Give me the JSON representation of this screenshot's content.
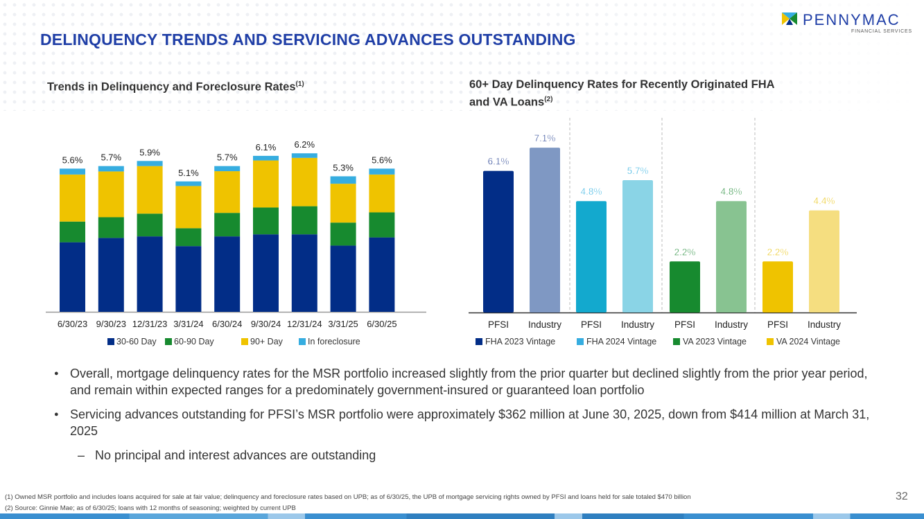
{
  "header": {
    "title": "DELINQUENCY TRENDS AND SERVICING ADVANCES OUTSTANDING",
    "logo_text": "PENNYMAC",
    "logo_sub": "FINANCIAL SERVICES"
  },
  "left_title": {
    "text": "Trends in Delinquency and Foreclosure Rates",
    "sup": "(1)"
  },
  "right_title": {
    "line1": "60+ Day Delinquency Rates for Recently Originated FHA",
    "line2": "and VA Loans",
    "sup": "(2)"
  },
  "chart_data": [
    {
      "type": "bar",
      "stacked": true,
      "categories": [
        "6/30/23",
        "9/30/23",
        "12/31/23",
        "3/31/24",
        "6/30/24",
        "9/30/24",
        "12/31/24",
        "3/31/25",
        "6/30/25"
      ],
      "totals": [
        "5.6%",
        "5.7%",
        "5.9%",
        "5.1%",
        "5.7%",
        "6.1%",
        "6.2%",
        "5.3%",
        "5.6%"
      ],
      "series": [
        {
          "name": "30-60 Day",
          "color": "#022d87",
          "values": [
            2.72,
            2.89,
            2.95,
            2.57,
            2.95,
            3.03,
            3.03,
            2.59,
            2.91
          ]
        },
        {
          "name": "60-90 Day",
          "color": "#178a2f",
          "values": [
            0.81,
            0.81,
            0.89,
            0.7,
            0.92,
            1.05,
            1.1,
            0.9,
            0.98
          ]
        },
        {
          "name": "90+ Day",
          "color": "#efc300",
          "values": [
            1.84,
            1.79,
            1.86,
            1.65,
            1.63,
            1.84,
            1.89,
            1.52,
            1.48
          ]
        },
        {
          "name": "In foreclosure",
          "color": "#36ade0",
          "values": [
            0.23,
            0.21,
            0.2,
            0.18,
            0.2,
            0.18,
            0.18,
            0.29,
            0.23
          ]
        }
      ],
      "ylim": [
        0,
        6.5
      ],
      "legend": "bottom"
    },
    {
      "type": "bar",
      "categories": [
        "PFSI",
        "Industry",
        "PFSI",
        "Industry",
        "PFSI",
        "Industry",
        "PFSI",
        "Industry"
      ],
      "values": [
        6.1,
        7.1,
        4.8,
        5.7,
        2.2,
        4.8,
        2.2,
        4.4
      ],
      "labels": [
        "6.1%",
        "7.1%",
        "4.8%",
        "5.7%",
        "2.2%",
        "4.8%",
        "2.2%",
        "4.4%"
      ],
      "colors": [
        "#022d87",
        "#7f98c3",
        "#13a9ce",
        "#8ad4e6",
        "#178a2f",
        "#88c391",
        "#efc300",
        "#f5de80"
      ],
      "label_colors": [
        "#1f3b8f",
        "#1f3b8f",
        "#2aaee0",
        "#2aaee0",
        "#1f8a35",
        "#1f8a35",
        "#e9c000",
        "#e9c000"
      ],
      "legend": [
        {
          "name": "FHA 2023 Vintage",
          "color": "#022d87"
        },
        {
          "name": "FHA 2024 Vintage",
          "color": "#36ade0"
        },
        {
          "name": "VA 2023 Vintage",
          "color": "#178a2f"
        },
        {
          "name": "VA 2024 Vintage",
          "color": "#efc300"
        }
      ],
      "ylim": [
        0,
        7.5
      ]
    }
  ],
  "bullets": [
    "Overall, mortgage delinquency rates for the MSR portfolio increased slightly from the prior quarter but declined slightly from the prior year period, and remain within expected ranges for a predominately government-insured or guaranteed loan portfolio",
    "Servicing advances outstanding for PFSI’s MSR portfolio were approximately $362 million at June 30, 2025, down from $414 million at March 31, 2025"
  ],
  "sub_bullet": "No principal and interest advances are outstanding",
  "bullet_char": "●",
  "dash_char": "–",
  "footnotes": [
    "(1) Owned MSR portfolio and includes loans acquired for sale at fair value; delinquency and foreclosure rates based on UPB; as of 6/30/25, the UPB of mortgage servicing rights owned by PFSI and loans held for sale totaled $470 billion",
    "(2) Source: Ginnie Mae; as of 6/30/25; loans with 12 months of seasoning; weighted by current UPB"
  ],
  "page_number": "32"
}
